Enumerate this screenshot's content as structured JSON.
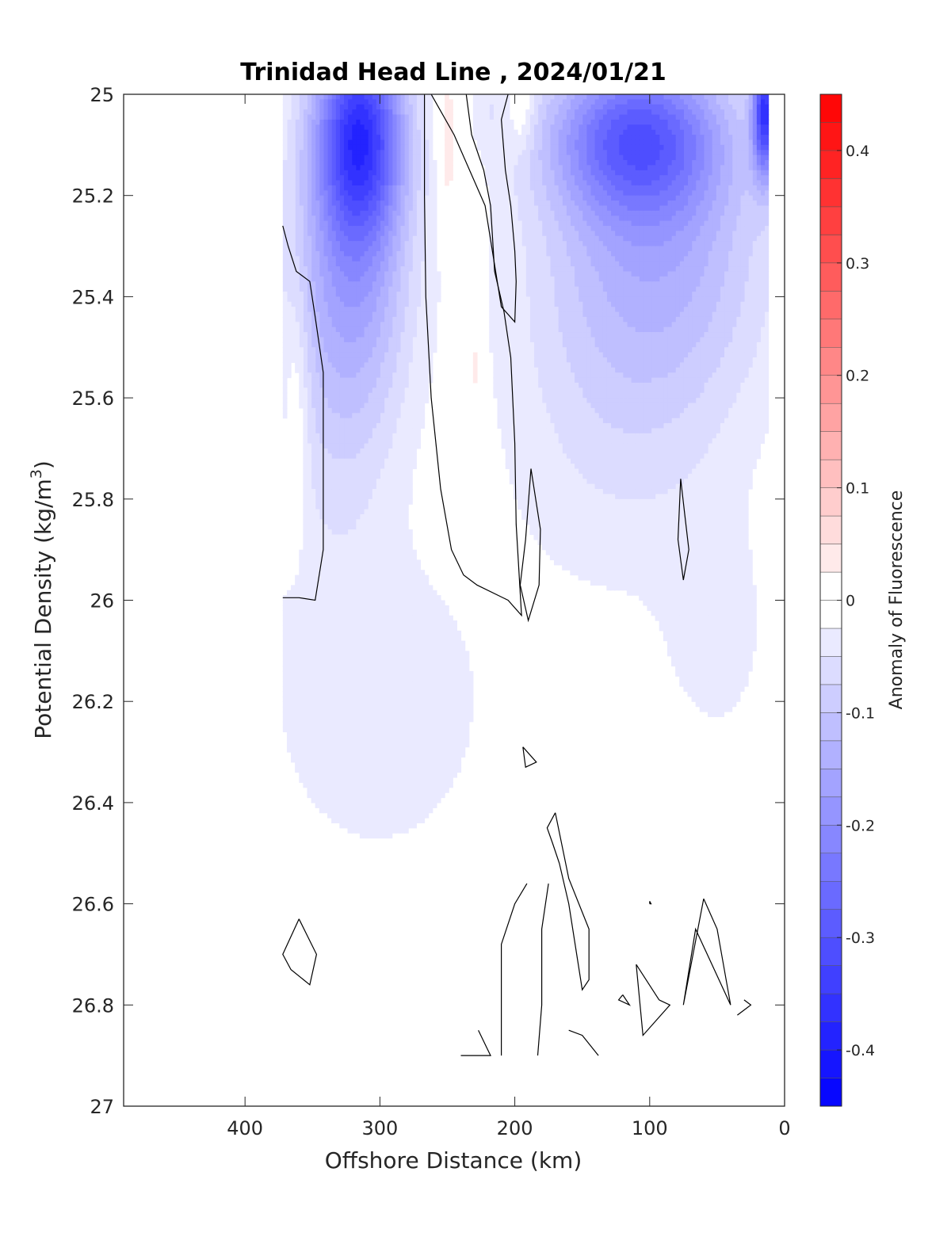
{
  "chart_data": {
    "type": "heatmap",
    "subtype": "filled-contour section",
    "title": "Trinidad Head Line , 2024/01/21",
    "xlabel": "Offshore Distance (km)",
    "ylabel_main": "Potential Density (kg/m",
    "ylabel_sup": "3",
    "ylabel_close": ")",
    "xlim": [
      490,
      0
    ],
    "x_reversed": true,
    "ylim": [
      25,
      27
    ],
    "y_reversed": true,
    "x_ticks": [
      400,
      300,
      200,
      100,
      0
    ],
    "y_ticks": [
      25,
      25.2,
      25.4,
      25.6,
      25.8,
      26,
      26.2,
      26.4,
      26.6,
      26.8,
      27
    ],
    "y_tick_labels": [
      "25",
      "25.2",
      "25.4",
      "25.6",
      "25.8",
      "26",
      "26.2",
      "26.4",
      "26.6",
      "26.8",
      "27"
    ],
    "colorbar": {
      "label": "Anomaly of Fluorescence",
      "clim": [
        -0.45,
        0.45
      ],
      "ticks": [
        0.4,
        0.3,
        0.2,
        0.1,
        0,
        -0.1,
        -0.2,
        -0.3,
        -0.4
      ],
      "tick_labels": [
        "0.4",
        "0.3",
        "0.2",
        "0.1",
        "0",
        "-0.1",
        "-0.2",
        "-0.3",
        "-0.4"
      ],
      "level_step": 0.025,
      "color_low": "#0000ff",
      "color_mid": "#ffffff",
      "color_high": "#ff0000"
    },
    "data_extent_x": [
      12,
      372
    ],
    "blobs": [
      {
        "x": 315,
        "y": 25.07,
        "rx": 32,
        "ry": 0.2,
        "v": -0.28
      },
      {
        "x": 318,
        "y": 25.3,
        "rx": 42,
        "ry": 0.35,
        "v": -0.14
      },
      {
        "x": 340,
        "y": 25.55,
        "rx": 50,
        "ry": 0.45,
        "v": -0.05
      },
      {
        "x": 110,
        "y": 25.08,
        "rx": 65,
        "ry": 0.16,
        "v": -0.24
      },
      {
        "x": 95,
        "y": 25.3,
        "rx": 85,
        "ry": 0.3,
        "v": -0.12
      },
      {
        "x": 120,
        "y": 25.65,
        "rx": 95,
        "ry": 0.38,
        "v": -0.05
      },
      {
        "x": 15,
        "y": 25.03,
        "rx": 9,
        "ry": 0.13,
        "v": -0.32
      },
      {
        "x": 250,
        "y": 25.1,
        "rx": 7,
        "ry": 0.15,
        "v": 0.06
      },
      {
        "x": 195,
        "y": 25.03,
        "rx": 9,
        "ry": 0.08,
        "v": 0.05
      },
      {
        "x": 362,
        "y": 25.62,
        "rx": 9,
        "ry": 0.25,
        "v": 0.05
      },
      {
        "x": 230,
        "y": 25.54,
        "rx": 4,
        "ry": 0.1,
        "v": 0.05
      },
      {
        "x": 220,
        "y": 25.03,
        "rx": 12,
        "ry": 0.07,
        "v": -0.03
      },
      {
        "x": 300,
        "y": 26.22,
        "rx": 85,
        "ry": 0.32,
        "v": -0.045
      },
      {
        "x": 50,
        "y": 26.08,
        "rx": 38,
        "ry": 0.22,
        "v": -0.035
      },
      {
        "x": 428,
        "y": 26.8,
        "rx": 4,
        "ry": 0.03,
        "v": -0.035
      }
    ],
    "zero_contours": [
      [
        [
          372,
          25.26
        ],
        [
          368,
          25.3
        ],
        [
          362,
          25.35
        ],
        [
          352,
          25.37
        ],
        [
          348,
          25.44
        ],
        [
          342,
          25.55
        ],
        [
          342,
          25.7
        ],
        [
          342,
          25.9
        ],
        [
          348,
          26.0
        ],
        [
          360,
          25.995
        ],
        [
          372,
          25.995
        ]
      ],
      [
        [
          267,
          25.0
        ],
        [
          267,
          25.2
        ],
        [
          266,
          25.4
        ],
        [
          262,
          25.6
        ],
        [
          255,
          25.78
        ],
        [
          247,
          25.9
        ],
        [
          238,
          25.95
        ],
        [
          228,
          25.97
        ],
        [
          205,
          26.0
        ],
        [
          195,
          26.03
        ],
        [
          199,
          25.85
        ],
        [
          200,
          25.69
        ],
        [
          203,
          25.52
        ],
        [
          208,
          25.43
        ],
        [
          215,
          25.35
        ],
        [
          218,
          25.22
        ],
        [
          223,
          25.15
        ],
        [
          232,
          25.08
        ],
        [
          236,
          25.0
        ]
      ],
      [
        [
          205,
          25.0
        ],
        [
          210,
          25.05
        ],
        [
          207,
          25.15
        ],
        [
          203,
          25.22
        ],
        [
          200,
          25.31
        ],
        [
          199,
          25.37
        ],
        [
          200,
          25.45
        ],
        [
          210,
          25.42
        ],
        [
          222,
          25.22
        ],
        [
          245,
          25.08
        ],
        [
          262,
          25.0
        ]
      ],
      [
        [
          196,
          25.97
        ],
        [
          192,
          25.88
        ],
        [
          188,
          25.74
        ],
        [
          181,
          25.86
        ],
        [
          182,
          25.97
        ],
        [
          190,
          26.04
        ],
        [
          196,
          25.97
        ]
      ],
      [
        [
          77,
          25.76
        ],
        [
          74,
          25.83
        ],
        [
          71,
          25.9
        ],
        [
          75,
          25.96
        ],
        [
          79,
          25.88
        ],
        [
          77,
          25.76
        ]
      ],
      [
        [
          194,
          26.29
        ],
        [
          184,
          26.32
        ],
        [
          192,
          26.33
        ],
        [
          194,
          26.29
        ]
      ],
      [
        [
          360,
          26.63
        ],
        [
          347,
          26.7
        ],
        [
          352,
          26.76
        ],
        [
          366,
          26.73
        ],
        [
          372,
          26.7
        ],
        [
          360,
          26.63
        ]
      ],
      [
        [
          170,
          26.42
        ],
        [
          160,
          26.55
        ],
        [
          145,
          26.65
        ],
        [
          145,
          26.75
        ],
        [
          150,
          26.77
        ],
        [
          160,
          26.6
        ],
        [
          167,
          26.52
        ],
        [
          172,
          26.48
        ],
        [
          176,
          26.45
        ],
        [
          170,
          26.42
        ]
      ],
      [
        [
          191,
          26.56
        ],
        [
          200,
          26.6
        ],
        [
          210,
          26.68
        ],
        [
          210,
          26.9
        ]
      ],
      [
        [
          175,
          26.56
        ],
        [
          180,
          26.65
        ],
        [
          180,
          26.8
        ],
        [
          183,
          26.9
        ]
      ],
      [
        [
          160,
          26.85
        ],
        [
          150,
          26.86
        ],
        [
          138,
          26.9
        ]
      ],
      [
        [
          227,
          26.85
        ],
        [
          218,
          26.9
        ],
        [
          240,
          26.9
        ]
      ],
      [
        [
          120,
          26.78
        ],
        [
          115,
          26.8
        ],
        [
          123,
          26.79
        ],
        [
          120,
          26.78
        ]
      ],
      [
        [
          100,
          26.6
        ],
        [
          99,
          26.6
        ],
        [
          100,
          26.595
        ],
        [
          100,
          26.6
        ]
      ],
      [
        [
          93,
          26.79
        ],
        [
          110,
          26.72
        ],
        [
          105,
          26.86
        ],
        [
          85,
          26.8
        ],
        [
          93,
          26.79
        ]
      ],
      [
        [
          60,
          26.59
        ],
        [
          50,
          26.65
        ],
        [
          40,
          26.8
        ],
        [
          66,
          26.65
        ],
        [
          75,
          26.8
        ],
        [
          60,
          26.59
        ]
      ],
      [
        [
          30,
          26.79
        ],
        [
          25,
          26.8
        ],
        [
          35,
          26.82
        ]
      ]
    ]
  }
}
